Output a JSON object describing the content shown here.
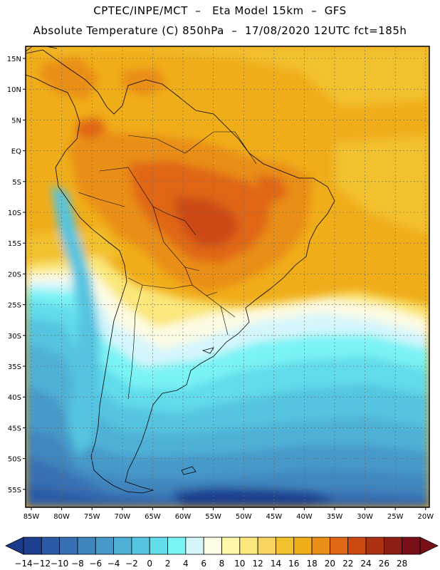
{
  "header": {
    "line1": "CPTEC/INPE/MCT  –   Eta Model 15km  –  GFS",
    "line2": "Absolute Temperature (C) 850hPa  –  17/08/2020 12UTC fct=185h"
  },
  "lat_labels": [
    "15N",
    "10N",
    "5N",
    "EQ",
    "5S",
    "10S",
    "15S",
    "20S",
    "25S",
    "30S",
    "35S",
    "40S",
    "45S",
    "50S",
    "55S"
  ],
  "lon_labels": [
    "85W",
    "80W",
    "75W",
    "70W",
    "65W",
    "60W",
    "55W",
    "50W",
    "45W",
    "40W",
    "35W",
    "30W",
    "25W",
    "20W"
  ],
  "colorbar": {
    "labels": [
      "-14",
      "-12",
      "-10",
      "-8",
      "-6",
      "-4",
      "-2",
      "0",
      "2",
      "4",
      "6",
      "8",
      "10",
      "12",
      "14",
      "16",
      "18",
      "20",
      "22",
      "24",
      "26",
      "28"
    ],
    "colors": [
      "#1e3f8f",
      "#2b5ba6",
      "#3770b3",
      "#3f86bf",
      "#4699c9",
      "#4fb0d6",
      "#55c4e0",
      "#62dbea",
      "#7af3f5",
      "#d4f6fb",
      "#fdfbe4",
      "#fff7a8",
      "#fbe77a",
      "#f7d460",
      "#f2c12e",
      "#f0ad1a",
      "#e98e17",
      "#e06614",
      "#cc4a12",
      "#ae3212",
      "#8e1d14",
      "#7a0f18"
    ],
    "left_arrow_color": "#1b3a8a",
    "right_arrow_color": "#7a0f18"
  }
}
